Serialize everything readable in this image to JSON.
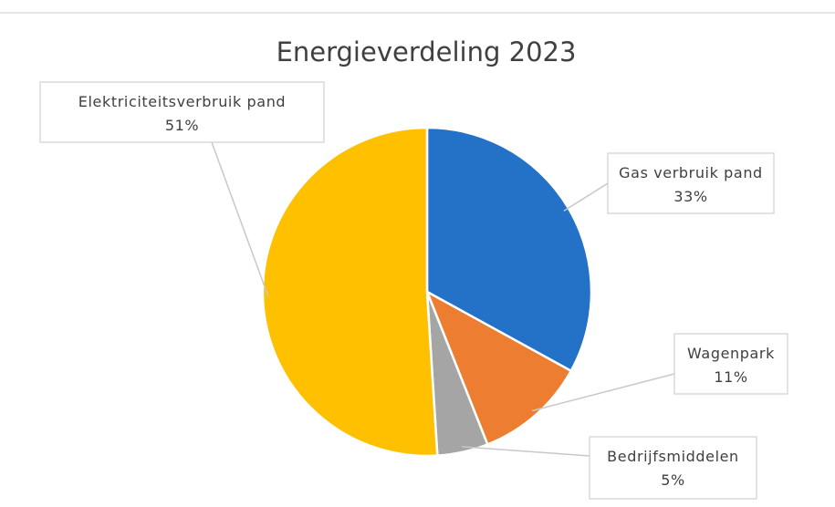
{
  "chart_data": {
    "type": "pie",
    "title": "Energieverdeling 2023",
    "categories": [
      "Gasverbruik pand",
      "Wagenpark",
      "Bedrijfsmiddelen",
      "Elektriciteitsverbruik pand"
    ],
    "values": [
      33,
      11,
      5,
      51
    ],
    "value_labels": [
      "33%",
      "11%",
      "5%",
      "51%"
    ],
    "label_display": [
      "Gas verbruik pand",
      "Wagenpark",
      "Bedrijfsmiddelen",
      "Elektriciteitsverbruik pand"
    ],
    "colors": [
      "#2471c8",
      "#ed7d31",
      "#a5a5a5",
      "#ffc000"
    ],
    "start_angle_deg": 0,
    "direction": "clockwise",
    "legend": "none",
    "data_labels": "callouts"
  }
}
